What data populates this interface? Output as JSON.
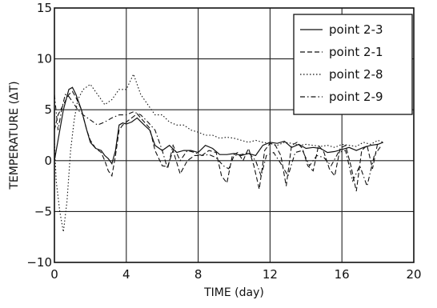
{
  "chart_data": {
    "type": "line",
    "xlabel": "TIME (day)",
    "ylabel": "TEMPERATURE (ΔT)",
    "xlim": [
      0,
      20
    ],
    "ylim": [
      -10,
      15
    ],
    "xticks": [
      0,
      4,
      8,
      12,
      16,
      20
    ],
    "yticks": [
      -10,
      -5,
      0,
      5,
      10,
      15
    ],
    "grid": true,
    "legend_position": "top-right",
    "series": [
      {
        "name": "point 2-3",
        "dash": "solid",
        "points": [
          [
            0,
            0
          ],
          [
            0.2,
            2
          ],
          [
            0.5,
            5
          ],
          [
            0.8,
            7
          ],
          [
            1.0,
            7.2
          ],
          [
            1.2,
            6.5
          ],
          [
            1.5,
            5
          ],
          [
            1.8,
            3
          ],
          [
            2.0,
            1.8
          ],
          [
            2.3,
            1.2
          ],
          [
            2.6,
            1
          ],
          [
            2.8,
            0.5
          ],
          [
            3.0,
            0.2
          ],
          [
            3.2,
            -0.3
          ],
          [
            3.4,
            1
          ],
          [
            3.6,
            3.5
          ],
          [
            3.8,
            3.7
          ],
          [
            4.0,
            3.6
          ],
          [
            4.3,
            3.8
          ],
          [
            4.6,
            4.2
          ],
          [
            5.0,
            3.5
          ],
          [
            5.3,
            3
          ],
          [
            5.6,
            1.5
          ],
          [
            6.0,
            1
          ],
          [
            6.4,
            1.5
          ],
          [
            6.8,
            0.8
          ],
          [
            7.2,
            1
          ],
          [
            7.6,
            1
          ],
          [
            8.0,
            0.8
          ],
          [
            8.4,
            1.5
          ],
          [
            8.8,
            1.2
          ],
          [
            9.2,
            0.6
          ],
          [
            9.6,
            0.6
          ],
          [
            10.0,
            0.7
          ],
          [
            10.4,
            0.5
          ],
          [
            10.8,
            0.7
          ],
          [
            11.2,
            0.5
          ],
          [
            11.6,
            1.5
          ],
          [
            12.0,
            1.8
          ],
          [
            12.4,
            1.7
          ],
          [
            12.8,
            1.9
          ],
          [
            13.2,
            1.3
          ],
          [
            13.6,
            1.6
          ],
          [
            14.0,
            1.2
          ],
          [
            14.4,
            1.3
          ],
          [
            14.8,
            1.2
          ],
          [
            15.2,
            0.8
          ],
          [
            15.6,
            0.9
          ],
          [
            16.0,
            1.1
          ],
          [
            16.4,
            1.3
          ],
          [
            16.8,
            1.0
          ],
          [
            17.2,
            1.3
          ],
          [
            17.6,
            1.5
          ],
          [
            18.0,
            1.6
          ],
          [
            18.3,
            1.8
          ]
        ]
      },
      {
        "name": "point 2-1",
        "dash": "dashed",
        "points": [
          [
            0,
            3
          ],
          [
            0.2,
            4.5
          ],
          [
            0.5,
            5.5
          ],
          [
            0.8,
            6.5
          ],
          [
            1.0,
            6.8
          ],
          [
            1.2,
            6.2
          ],
          [
            1.5,
            5
          ],
          [
            1.8,
            3
          ],
          [
            2.0,
            2
          ],
          [
            2.3,
            1.2
          ],
          [
            2.6,
            0.8
          ],
          [
            2.8,
            0
          ],
          [
            3.0,
            -1
          ],
          [
            3.2,
            -1.5
          ],
          [
            3.4,
            0.5
          ],
          [
            3.6,
            3
          ],
          [
            3.8,
            3.5
          ],
          [
            4.0,
            3.8
          ],
          [
            4.3,
            4.2
          ],
          [
            4.6,
            4.6
          ],
          [
            5.0,
            3.8
          ],
          [
            5.3,
            3.2
          ],
          [
            5.6,
            1
          ],
          [
            6.0,
            -0.5
          ],
          [
            6.3,
            -0.6
          ],
          [
            6.6,
            1
          ],
          [
            7.0,
            -1.3
          ],
          [
            7.4,
            0
          ],
          [
            7.8,
            0.5
          ],
          [
            8.2,
            0.5
          ],
          [
            8.6,
            1
          ],
          [
            9.0,
            0.8
          ],
          [
            9.3,
            -1.5
          ],
          [
            9.6,
            -2.2
          ],
          [
            9.9,
            0.5
          ],
          [
            10.2,
            0.8
          ],
          [
            10.5,
            0
          ],
          [
            10.8,
            1.2
          ],
          [
            11.1,
            -0.5
          ],
          [
            11.4,
            -2.8
          ],
          [
            11.7,
            1
          ],
          [
            12.0,
            1.7
          ],
          [
            12.3,
            1.5
          ],
          [
            12.6,
            0.5
          ],
          [
            12.9,
            -2.5
          ],
          [
            13.2,
            1.5
          ],
          [
            13.5,
            1.8
          ],
          [
            13.8,
            1.2
          ],
          [
            14.1,
            -0.5
          ],
          [
            14.4,
            -1
          ],
          [
            14.7,
            1.5
          ],
          [
            15.0,
            0.8
          ],
          [
            15.3,
            -0.8
          ],
          [
            15.6,
            -1.5
          ],
          [
            15.9,
            1.2
          ],
          [
            16.2,
            1.5
          ],
          [
            16.5,
            -0.5
          ],
          [
            16.8,
            -3
          ],
          [
            17.1,
            1
          ],
          [
            17.4,
            1.5
          ],
          [
            17.7,
            -0.8
          ],
          [
            18.0,
            1.8
          ]
        ]
      },
      {
        "name": "point 2-8",
        "dash": "dotted",
        "points": [
          [
            0,
            2
          ],
          [
            0.1,
            -2
          ],
          [
            0.3,
            -5
          ],
          [
            0.5,
            -7
          ],
          [
            0.7,
            -4
          ],
          [
            0.9,
            1
          ],
          [
            1.1,
            4
          ],
          [
            1.3,
            6
          ],
          [
            1.6,
            7
          ],
          [
            2.0,
            7.5
          ],
          [
            2.4,
            6.5
          ],
          [
            2.8,
            5.5
          ],
          [
            3.2,
            6
          ],
          [
            3.6,
            7
          ],
          [
            4.0,
            7
          ],
          [
            4.4,
            8.5
          ],
          [
            4.8,
            6.5
          ],
          [
            5.2,
            5.5
          ],
          [
            5.6,
            4.5
          ],
          [
            6.0,
            4.5
          ],
          [
            6.4,
            3.8
          ],
          [
            6.8,
            3.5
          ],
          [
            7.2,
            3.5
          ],
          [
            7.6,
            3
          ],
          [
            8.0,
            2.8
          ],
          [
            8.4,
            2.5
          ],
          [
            8.8,
            2.5
          ],
          [
            9.2,
            2.2
          ],
          [
            9.6,
            2.3
          ],
          [
            10.0,
            2.2
          ],
          [
            10.4,
            2
          ],
          [
            10.8,
            1.8
          ],
          [
            11.2,
            2
          ],
          [
            11.6,
            1.8
          ],
          [
            12.0,
            1.7
          ],
          [
            12.4,
            1.5
          ],
          [
            12.8,
            1.8
          ],
          [
            13.2,
            1.7
          ],
          [
            13.6,
            1.5
          ],
          [
            14.0,
            1.6
          ],
          [
            14.4,
            1.5
          ],
          [
            14.8,
            1.4
          ],
          [
            15.2,
            1.5
          ],
          [
            15.6,
            1.3
          ],
          [
            16.0,
            1.6
          ],
          [
            16.4,
            1.5
          ],
          [
            16.8,
            1.4
          ],
          [
            17.2,
            1.8
          ],
          [
            17.6,
            1.6
          ],
          [
            18.0,
            2
          ],
          [
            18.3,
            1.8
          ]
        ]
      },
      {
        "name": "point 2-9",
        "dash": "dashdot",
        "points": [
          [
            0,
            6.5
          ],
          [
            0.2,
            3
          ],
          [
            0.4,
            5
          ],
          [
            0.6,
            6.5
          ],
          [
            0.8,
            6.3
          ],
          [
            1.0,
            5.8
          ],
          [
            1.3,
            5
          ],
          [
            1.6,
            4.5
          ],
          [
            2.0,
            4
          ],
          [
            2.4,
            3.5
          ],
          [
            2.8,
            3.8
          ],
          [
            3.2,
            4.2
          ],
          [
            3.6,
            4.5
          ],
          [
            4.0,
            4.5
          ],
          [
            4.4,
            4.8
          ],
          [
            4.8,
            4.5
          ],
          [
            5.2,
            3.8
          ],
          [
            5.6,
            3
          ],
          [
            6.0,
            1
          ],
          [
            6.3,
            -0.8
          ],
          [
            6.6,
            1.5
          ],
          [
            7.0,
            0
          ],
          [
            7.4,
            1
          ],
          [
            7.8,
            0.8
          ],
          [
            8.2,
            0.5
          ],
          [
            8.6,
            0.6
          ],
          [
            9.0,
            0.3
          ],
          [
            9.4,
            -0.5
          ],
          [
            9.7,
            -0.8
          ],
          [
            10.0,
            0.5
          ],
          [
            10.4,
            0.6
          ],
          [
            10.8,
            0.8
          ],
          [
            11.2,
            0
          ],
          [
            11.5,
            -1.5
          ],
          [
            11.8,
            0.5
          ],
          [
            12.2,
            0.8
          ],
          [
            12.6,
            -0.3
          ],
          [
            13.0,
            -1.5
          ],
          [
            13.4,
            0.8
          ],
          [
            13.8,
            1
          ],
          [
            14.2,
            -0.5
          ],
          [
            14.6,
            0.5
          ],
          [
            15.0,
            0.3
          ],
          [
            15.4,
            -0.5
          ],
          [
            15.8,
            0.8
          ],
          [
            16.2,
            1
          ],
          [
            16.6,
            -2
          ],
          [
            17.0,
            -0.5
          ],
          [
            17.4,
            -2.5
          ],
          [
            17.8,
            0.5
          ],
          [
            18.2,
            1.5
          ]
        ]
      }
    ]
  }
}
